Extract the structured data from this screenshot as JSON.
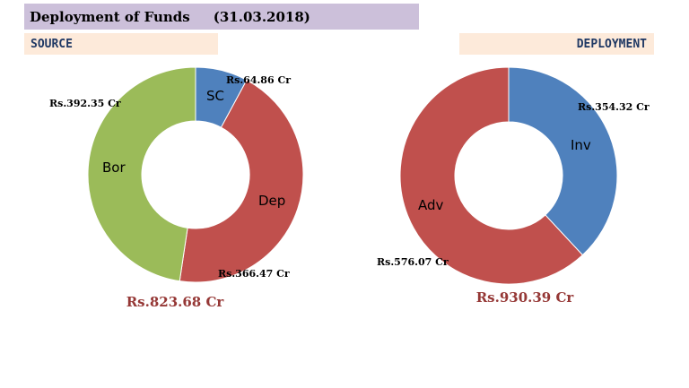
{
  "header": {
    "title": "Deployment of Funds",
    "date": "(31.03.2018)"
  },
  "sections": {
    "source_label": "SOURCE",
    "deployment_label": "DEPLOYMENT"
  },
  "chart_data": [
    {
      "type": "donut",
      "name": "SOURCE",
      "total_label": "Rs.823.68 Cr",
      "slices": [
        {
          "short": "SC",
          "label": "Rs.64.86 Cr",
          "value": 64.86,
          "color": "#4f81bd"
        },
        {
          "short": "Dep",
          "label": "Rs.366.47 Cr",
          "value": 366.47,
          "color": "#c0504d"
        },
        {
          "short": "Bor",
          "label": "Rs.392.35 Cr",
          "value": 392.35,
          "color": "#9bbb59"
        }
      ]
    },
    {
      "type": "donut",
      "name": "DEPLOYMENT",
      "total_label": "Rs.930.39 Cr",
      "slices": [
        {
          "short": "Inv",
          "label": "Rs.354.32 Cr",
          "value": 354.32,
          "color": "#4f81bd"
        },
        {
          "short": "Adv",
          "label": "Rs.576.07 Cr",
          "value": 576.07,
          "color": "#c0504d"
        }
      ]
    }
  ]
}
